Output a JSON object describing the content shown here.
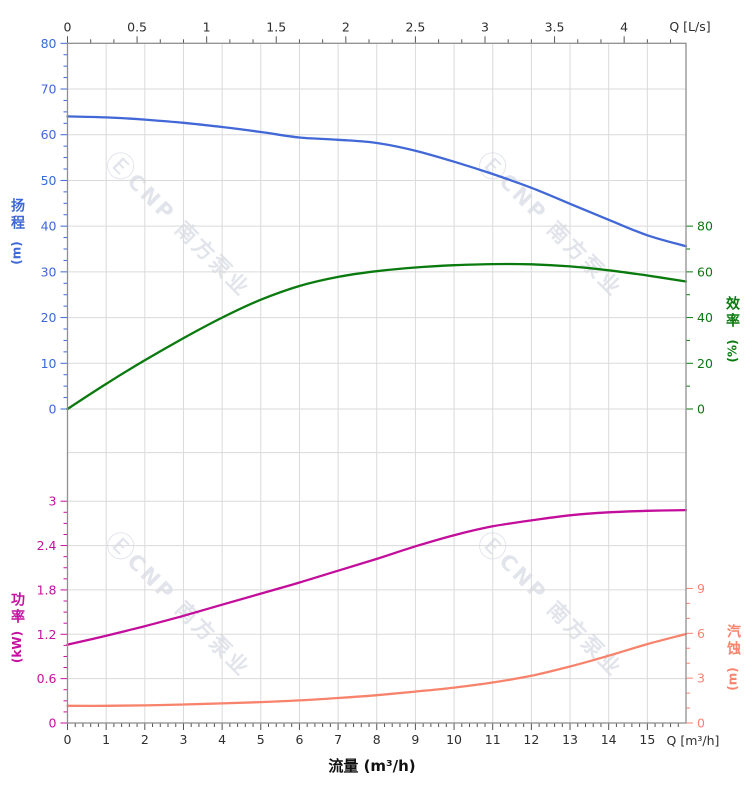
{
  "watermark": {
    "logo": "Ⓔ",
    "brand": "CNP 南方泵业"
  },
  "axes": {
    "top": {
      "label": "Q [L/s]"
    },
    "bottom": {
      "label": "Q [m³/h]",
      "title": "流量 (m³/h)"
    },
    "head": {
      "title": "扬程",
      "unit": "(m)"
    },
    "eff": {
      "title": "效率",
      "unit": "(%)"
    },
    "power": {
      "title": "功率",
      "unit": "(kW)"
    },
    "npsh": {
      "title": "汽蚀",
      "unit": "(m)"
    }
  },
  "chart_data": {
    "type": "line",
    "title": "",
    "x_bottom": {
      "label": "Q [m³/h]",
      "title": "流量 (m³/h)",
      "range": [
        0,
        16
      ],
      "tick_labels": [
        "0",
        "1",
        "2",
        "3",
        "4",
        "5",
        "6",
        "7",
        "8",
        "9",
        "10",
        "11",
        "12",
        "13",
        "14",
        "15"
      ],
      "major_step": 1,
      "minor_step": 0.2,
      "grid": true
    },
    "x_top": {
      "label": "Q [L/s]",
      "range_Ls": [
        0,
        4.44
      ],
      "tick_labels": [
        "0",
        "0.5",
        "1",
        "1.5",
        "2",
        "2.5",
        "3",
        "3.5",
        "4"
      ],
      "Ls_to_m3h": 3.6,
      "minor_step_m3h": 0.6
    },
    "y_head": {
      "label": "扬程 (m)",
      "range": [
        0,
        80
      ],
      "tick_labels": [
        "0",
        "10",
        "20",
        "30",
        "40",
        "50",
        "60",
        "70",
        "80"
      ],
      "major_step": 10,
      "minor_step": 2.5,
      "side": "left",
      "color": "#3e68d8",
      "grid": true
    },
    "y_eff": {
      "label": "效率 (%)",
      "range": [
        0,
        80
      ],
      "tick_labels": [
        "0",
        "20",
        "40",
        "60",
        "80"
      ],
      "major_step": 20,
      "minor_step": 10,
      "side": "right",
      "color": "#0a7a0e",
      "grid": false
    },
    "y_power": {
      "label": "功率 (kW)",
      "range": [
        0,
        3
      ],
      "tick_labels": [
        "0",
        "0.6",
        "1.2",
        "1.8",
        "2.4",
        "3"
      ],
      "major_step": 0.6,
      "minor_step": 0.15,
      "side": "left",
      "color": "#c510a0",
      "grid": true
    },
    "y_npsh": {
      "label": "汽蚀 (m)",
      "range": [
        0,
        9
      ],
      "tick_labels": [
        "0",
        "3",
        "6",
        "9"
      ],
      "major_step": 3,
      "minor_step": 1,
      "side": "right",
      "color": "#f8846e",
      "grid": false
    },
    "legend": "none",
    "series": [
      {
        "name": "head",
        "axis": "y_head",
        "color": "#4168d6",
        "units": "m",
        "points": [
          [
            0,
            64.0
          ],
          [
            1,
            63.8
          ],
          [
            2,
            63.3
          ],
          [
            3,
            62.6
          ],
          [
            4,
            61.7
          ],
          [
            5,
            60.6
          ],
          [
            6,
            59.4
          ],
          [
            7,
            58.9
          ],
          [
            8,
            58.2
          ],
          [
            9,
            56.5
          ],
          [
            10,
            54.1
          ],
          [
            11,
            51.4
          ],
          [
            12,
            48.4
          ],
          [
            13,
            44.9
          ],
          [
            14,
            41.4
          ],
          [
            15,
            38.0
          ],
          [
            16,
            35.6
          ]
        ]
      },
      {
        "name": "efficiency",
        "axis": "y_eff",
        "color": "#0a7a0e",
        "units": "%",
        "points": [
          [
            0,
            0
          ],
          [
            1,
            11
          ],
          [
            2,
            21.3
          ],
          [
            3,
            31
          ],
          [
            4,
            40
          ],
          [
            5,
            47.8
          ],
          [
            6,
            53.8
          ],
          [
            7,
            57.8
          ],
          [
            8,
            60.3
          ],
          [
            9,
            61.9
          ],
          [
            10,
            62.9
          ],
          [
            11,
            63.4
          ],
          [
            12,
            63.3
          ],
          [
            13,
            62.4
          ],
          [
            14,
            60.7
          ],
          [
            15,
            58.4
          ],
          [
            16,
            55.8
          ]
        ]
      },
      {
        "name": "power",
        "axis": "y_power",
        "color": "#c30d9b",
        "units": "kW",
        "points": [
          [
            0,
            1.06
          ],
          [
            1,
            1.18
          ],
          [
            2,
            1.31
          ],
          [
            3,
            1.45
          ],
          [
            4,
            1.6
          ],
          [
            5,
            1.75
          ],
          [
            6,
            1.9
          ],
          [
            7,
            2.06
          ],
          [
            8,
            2.22
          ],
          [
            9,
            2.39
          ],
          [
            10,
            2.54
          ],
          [
            11,
            2.66
          ],
          [
            12,
            2.74
          ],
          [
            13,
            2.81
          ],
          [
            14,
            2.85
          ],
          [
            15,
            2.87
          ],
          [
            16,
            2.88
          ]
        ]
      },
      {
        "name": "npsh",
        "axis": "y_npsh",
        "color": "#f8836c",
        "units": "m",
        "points": [
          [
            0,
            1.15
          ],
          [
            1,
            1.15
          ],
          [
            2,
            1.18
          ],
          [
            3,
            1.24
          ],
          [
            4,
            1.31
          ],
          [
            5,
            1.4
          ],
          [
            6,
            1.51
          ],
          [
            7,
            1.67
          ],
          [
            8,
            1.86
          ],
          [
            9,
            2.1
          ],
          [
            10,
            2.37
          ],
          [
            11,
            2.71
          ],
          [
            12,
            3.16
          ],
          [
            13,
            3.78
          ],
          [
            14,
            4.5
          ],
          [
            15,
            5.28
          ],
          [
            16,
            5.95
          ]
        ]
      }
    ]
  },
  "style": {
    "grid_color": "#dadada",
    "border_color": "#8f8f8f",
    "dark_text": "#2e2e2e",
    "head_color": "#3e68d8",
    "eff_color": "#0a7a0e",
    "power_color": "#c510a0",
    "npsh_color": "#f8846e"
  }
}
